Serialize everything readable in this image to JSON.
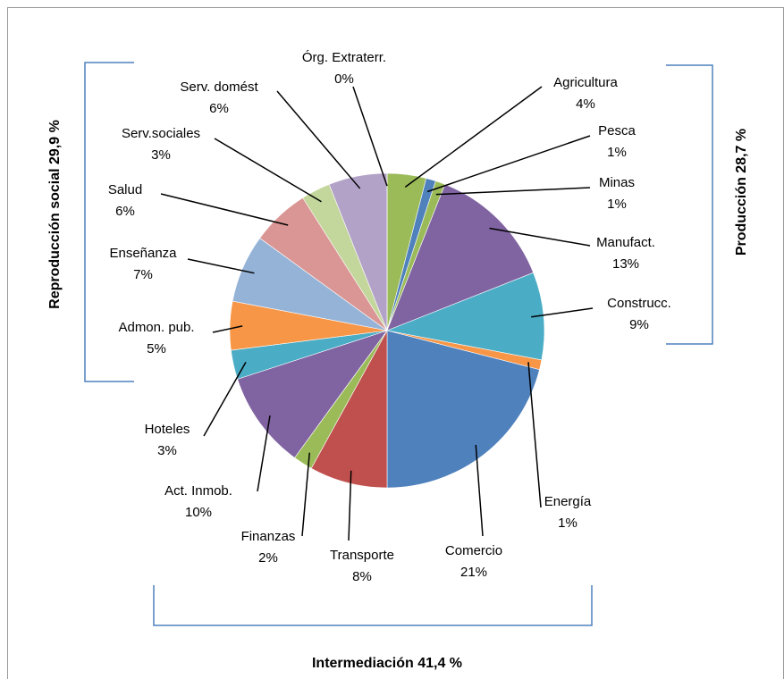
{
  "chart_data": {
    "type": "pie",
    "categories": [
      "Agricultura",
      "Pesca",
      "Minas",
      "Manufact.",
      "Construcc.",
      "Energía",
      "Comercio",
      "Transporte",
      "Finanzas",
      "Act. Inmob.",
      "Hoteles",
      "Admon. pub.",
      "Enseñanza",
      "Salud",
      "Serv.sociales",
      "Serv. domést",
      "Órg. Extraterr."
    ],
    "values": [
      4,
      1,
      1,
      13,
      9,
      1,
      21,
      8,
      2,
      10,
      3,
      5,
      7,
      6,
      3,
      6,
      0
    ],
    "value_labels": [
      "4%",
      "1%",
      "1%",
      "13%",
      "9%",
      "1%",
      "21%",
      "8%",
      "2%",
      "10%",
      "3%",
      "5%",
      "7%",
      "6%",
      "3%",
      "6%",
      "0%"
    ],
    "colors": [
      "#9bbb59",
      "#4f81bd",
      "#9bbb59",
      "#8064a2",
      "#4bacc6",
      "#f79646",
      "#4f81bd",
      "#c0504d",
      "#9bbb59",
      "#8064a2",
      "#4bacc6",
      "#f79646",
      "#95b3d7",
      "#d99694",
      "#c3d69b",
      "#b3a2c7",
      "#8eb4e3"
    ],
    "annotations": [
      "Producción 28,7 %",
      "Intermediación 41,4 %",
      "Reproducción social 29,9 %"
    ]
  }
}
